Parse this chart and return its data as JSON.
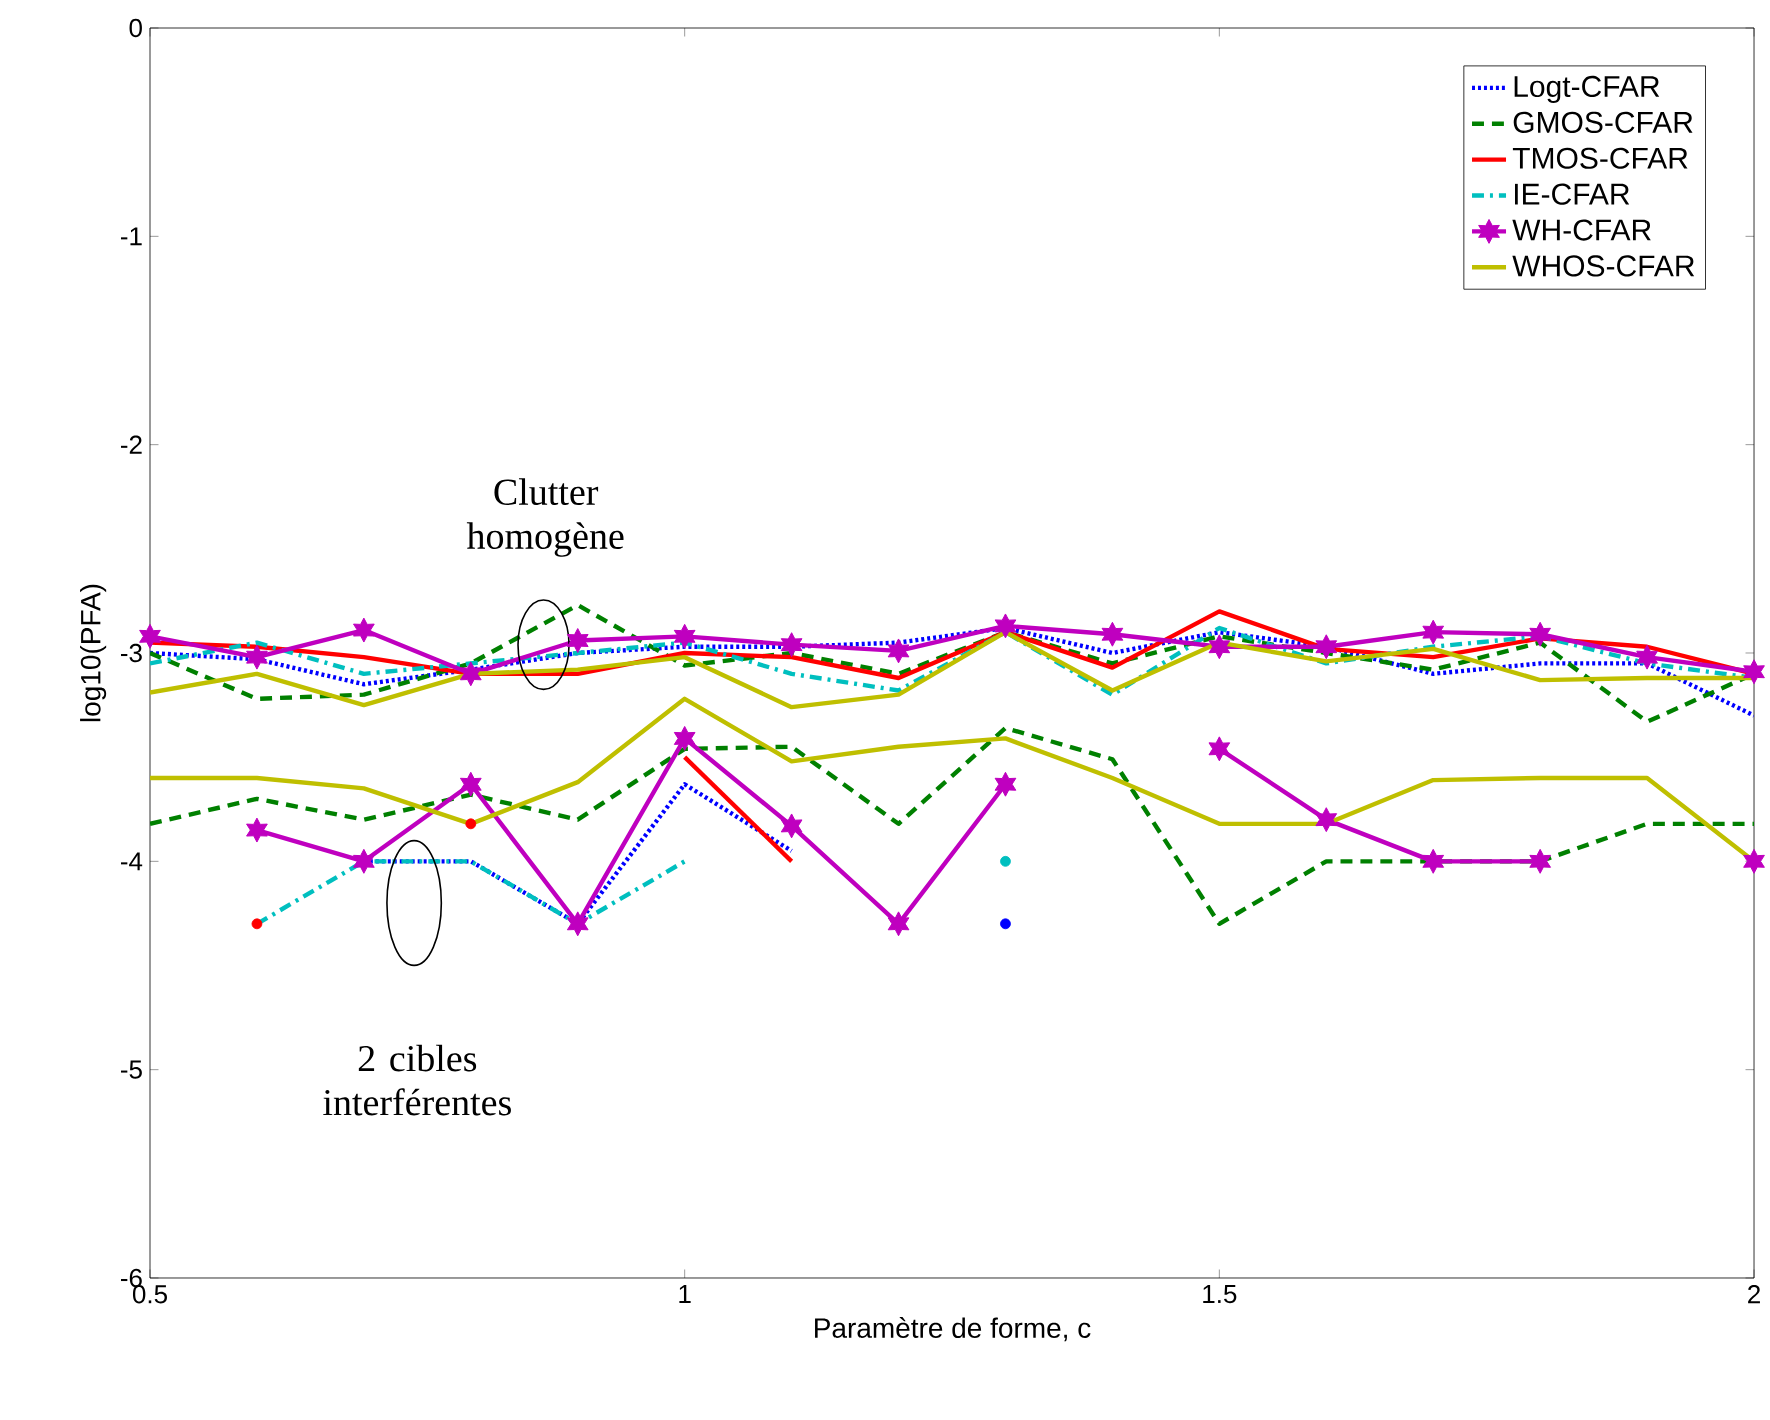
{
  "chart_data": {
    "type": "line",
    "xlabel": "Paramètre de forme, c",
    "ylabel": "log10(PFA)",
    "x": [
      0.5,
      0.6,
      0.7,
      0.8,
      0.9,
      1.0,
      1.1,
      1.2,
      1.3,
      1.4,
      1.5,
      1.6,
      1.7,
      1.8,
      1.9,
      2.0
    ],
    "xlim": [
      0.5,
      2
    ],
    "xticks": [
      0.5,
      1,
      1.5,
      2
    ],
    "ylim": [
      -6,
      0
    ],
    "yticks": [
      -6,
      -5,
      -4,
      -3,
      -2,
      -1,
      0
    ],
    "legend": "top right",
    "grid": false,
    "annotations": [
      "Clutter homogène",
      "2 cibles interférentes"
    ],
    "series": [
      {
        "name": "Logt-CFAR",
        "color": "#0000ff",
        "line_style": "dotted",
        "values": [
          -3.0,
          -3.03,
          -3.15,
          -3.08,
          -3.0,
          -2.97,
          -2.97,
          -2.95,
          -2.88,
          -3.0,
          -2.9,
          -2.97,
          -3.1,
          -3.05,
          -3.05,
          -3.3
        ]
      },
      {
        "name": "GMOS-CFAR",
        "color": "#008000",
        "line_style": "dashed",
        "values": [
          -3.0,
          -3.22,
          -3.2,
          -3.05,
          -2.77,
          -3.06,
          -3.0,
          -3.1,
          -2.9,
          -3.05,
          -2.92,
          -3.0,
          -3.08,
          -2.95,
          -3.33,
          -3.1
        ]
      },
      {
        "name": "TMOS-CFAR",
        "color": "#ff0000",
        "line_style": "solid",
        "values": [
          -2.95,
          -2.97,
          -3.02,
          -3.1,
          -3.1,
          -3.0,
          -3.02,
          -3.12,
          -2.9,
          -3.07,
          -2.8,
          -2.98,
          -3.02,
          -2.93,
          -2.97,
          -3.1
        ]
      },
      {
        "name": "IE-CFAR",
        "color": "#00bfbf",
        "line_style": "dashdot",
        "values": [
          -3.05,
          -2.95,
          -3.1,
          -3.05,
          -3.0,
          -2.95,
          -3.1,
          -3.18,
          -2.9,
          -3.2,
          -2.88,
          -3.05,
          -2.97,
          -2.92,
          -3.05,
          -3.12
        ]
      },
      {
        "name": "WH-CFAR",
        "color": "#bf00bf",
        "line_style": "solid",
        "marker": "cross",
        "values": [
          -2.92,
          -3.02,
          -2.89,
          -3.1,
          -2.94,
          -2.92,
          -2.96,
          -2.99,
          -2.87,
          -2.91,
          -2.97,
          -2.97,
          -2.9,
          -2.91,
          -3.02,
          -3.09
        ]
      },
      {
        "name": "WHOS-CFAR",
        "color": "#bfbf00",
        "line_style": "solid",
        "values": [
          -3.19,
          -3.1,
          -3.25,
          -3.1,
          -3.08,
          -3.02,
          -3.26,
          -3.2,
          -2.9,
          -3.18,
          -2.95,
          -3.04,
          -2.98,
          -3.13,
          -3.12,
          -3.12
        ]
      },
      {
        "color": "#0000ff",
        "line_style": "dotted",
        "values": [
          null,
          null,
          -4.0,
          -4.0,
          -4.3,
          -3.63,
          -3.95,
          null,
          -4.3,
          null,
          null,
          null,
          null,
          null,
          null,
          null
        ]
      },
      {
        "color": "#008000",
        "line_style": "dashed",
        "values": [
          -3.82,
          -3.7,
          -3.8,
          -3.68,
          -3.8,
          -3.46,
          -3.45,
          -3.82,
          -3.36,
          -3.51,
          -4.3,
          -4.0,
          -4.0,
          -4.0,
          -3.82,
          -3.82
        ]
      },
      {
        "color": "#ff0000",
        "line_style": "solid",
        "values": [
          null,
          -4.3,
          null,
          -3.82,
          null,
          -3.5,
          -4.0,
          null,
          null,
          null,
          null,
          null,
          null,
          null,
          null,
          null
        ]
      },
      {
        "color": "#00bfbf",
        "line_style": "dashdot",
        "values": [
          null,
          -4.3,
          -4.0,
          -4.0,
          -4.3,
          -4.0,
          null,
          null,
          -4.0,
          null,
          null,
          null,
          null,
          null,
          null,
          null
        ]
      },
      {
        "color": "#bf00bf",
        "line_style": "solid",
        "marker": "cross",
        "values": [
          null,
          -3.85,
          -4.0,
          -3.63,
          -4.3,
          -3.41,
          -3.83,
          -4.3,
          -3.63,
          null,
          -3.46,
          -3.8,
          -4.0,
          -4.0,
          null,
          -4.0
        ]
      },
      {
        "color": "#bfbf00",
        "line_style": "solid",
        "values": [
          -3.6,
          -3.6,
          -3.65,
          -3.82,
          -3.62,
          -3.22,
          -3.52,
          -3.45,
          -3.41,
          -3.6,
          -3.82,
          -3.82,
          -3.61,
          -3.6,
          -3.6,
          -4.0
        ]
      }
    ]
  }
}
